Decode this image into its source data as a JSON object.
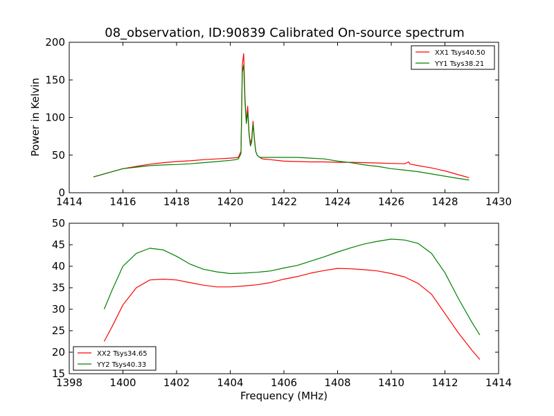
{
  "chart_data": [
    {
      "type": "line",
      "title": "08_observation, ID:90839 Calibrated On-source spectrum",
      "xlabel": "",
      "ylabel": "Power in Kelvin",
      "xlim": [
        1414,
        1430
      ],
      "ylim": [
        0,
        200
      ],
      "xticks": [
        "1414",
        "1416",
        "1418",
        "1420",
        "1422",
        "1424",
        "1426",
        "1428",
        "1430"
      ],
      "yticks": [
        "0",
        "50",
        "100",
        "150",
        "200"
      ],
      "legend_position": "top-right",
      "series": [
        {
          "name": "XX1 Tsys40.50",
          "color": "#ff0000",
          "x": [
            1414.9,
            1415.5,
            1416,
            1416.5,
            1417,
            1417.5,
            1418,
            1418.5,
            1419,
            1419.5,
            1420,
            1420.2,
            1420.3,
            1420.4,
            1420.45,
            1420.5,
            1420.55,
            1420.6,
            1420.65,
            1420.7,
            1420.75,
            1420.8,
            1420.85,
            1420.9,
            1420.95,
            1421.0,
            1421.1,
            1421.2,
            1421.5,
            1422,
            1422.5,
            1423,
            1423.5,
            1424,
            1424.5,
            1425,
            1425.5,
            1426,
            1426.5,
            1426.65,
            1426.7,
            1426.8,
            1427,
            1427.5,
            1428,
            1428.5,
            1428.9
          ],
          "y": [
            21,
            27,
            32,
            35,
            38,
            40,
            41.5,
            42.5,
            44,
            45,
            46,
            46.5,
            47,
            55,
            170,
            185,
            125,
            95,
            115,
            80,
            65,
            72,
            95,
            72,
            55,
            50,
            47,
            45,
            44,
            42,
            41.5,
            41,
            41,
            40.5,
            40.5,
            40,
            39.5,
            39,
            38.5,
            41,
            38,
            37.5,
            36,
            33,
            29,
            24,
            20
          ]
        },
        {
          "name": "YY1 Tsys38.21",
          "color": "#008000",
          "x": [
            1414.9,
            1415.5,
            1416,
            1416.5,
            1417,
            1417.5,
            1418,
            1418.5,
            1419,
            1419.5,
            1420,
            1420.2,
            1420.3,
            1420.4,
            1420.45,
            1420.5,
            1420.55,
            1420.6,
            1420.65,
            1420.7,
            1420.75,
            1420.8,
            1420.85,
            1420.9,
            1420.95,
            1421.0,
            1421.1,
            1421.2,
            1421.5,
            1422,
            1422.5,
            1423,
            1423.5,
            1424,
            1424.5,
            1425,
            1425.5,
            1426,
            1426.5,
            1427,
            1427.5,
            1428,
            1428.5,
            1428.9
          ],
          "y": [
            21,
            27,
            32,
            34,
            36,
            37,
            37.5,
            38.5,
            40,
            41.5,
            43,
            44,
            45,
            52,
            160,
            170,
            120,
            92,
            108,
            78,
            62,
            68,
            92,
            70,
            55,
            50,
            47,
            47,
            47,
            47,
            47,
            46,
            45,
            42,
            40,
            37,
            35,
            32,
            30,
            28,
            25,
            22,
            19,
            17
          ]
        }
      ]
    },
    {
      "type": "line",
      "title": "",
      "xlabel": "Frequency (MHz)",
      "ylabel": "",
      "xlim": [
        1398,
        1414
      ],
      "ylim": [
        15,
        50
      ],
      "xticks": [
        "1398",
        "1400",
        "1402",
        "1404",
        "1406",
        "1408",
        "1410",
        "1412",
        "1414"
      ],
      "yticks": [
        "15",
        "20",
        "25",
        "30",
        "35",
        "40",
        "45",
        "50"
      ],
      "legend_position": "bottom-left",
      "series": [
        {
          "name": "XX2 Tsys34.65",
          "color": "#ff0000",
          "x": [
            1399.3,
            1399.6,
            1400,
            1400.5,
            1401,
            1401.5,
            1402,
            1402.5,
            1403,
            1403.5,
            1404,
            1404.5,
            1405,
            1405.5,
            1406,
            1406.5,
            1407,
            1407.5,
            1408,
            1408.5,
            1409,
            1409.5,
            1410,
            1410.5,
            1411,
            1411.5,
            1412,
            1412.5,
            1413,
            1413.3
          ],
          "y": [
            22.5,
            26,
            31,
            35,
            36.8,
            37,
            36.8,
            36.2,
            35.6,
            35.2,
            35.2,
            35.4,
            35.7,
            36.2,
            37,
            37.6,
            38.4,
            39,
            39.5,
            39.4,
            39.2,
            38.9,
            38.3,
            37.5,
            36,
            33.5,
            29,
            24.5,
            20.5,
            18.3
          ]
        },
        {
          "name": "YY2 Tsys40.33",
          "color": "#008000",
          "x": [
            1399.3,
            1399.6,
            1400,
            1400.5,
            1401,
            1401.5,
            1402,
            1402.5,
            1403,
            1403.5,
            1404,
            1404.5,
            1405,
            1405.5,
            1406,
            1406.5,
            1407,
            1407.5,
            1408,
            1408.5,
            1409,
            1409.5,
            1410,
            1410.5,
            1411,
            1411.5,
            1412,
            1412.5,
            1413,
            1413.3
          ],
          "y": [
            30,
            34.5,
            40,
            43,
            44.2,
            43.8,
            42.3,
            40.5,
            39.3,
            38.7,
            38.3,
            38.4,
            38.6,
            38.9,
            39.6,
            40.2,
            41.2,
            42.2,
            43.3,
            44.3,
            45.2,
            45.8,
            46.3,
            46.1,
            45.3,
            43,
            38.5,
            32.5,
            27,
            24
          ]
        }
      ]
    }
  ]
}
